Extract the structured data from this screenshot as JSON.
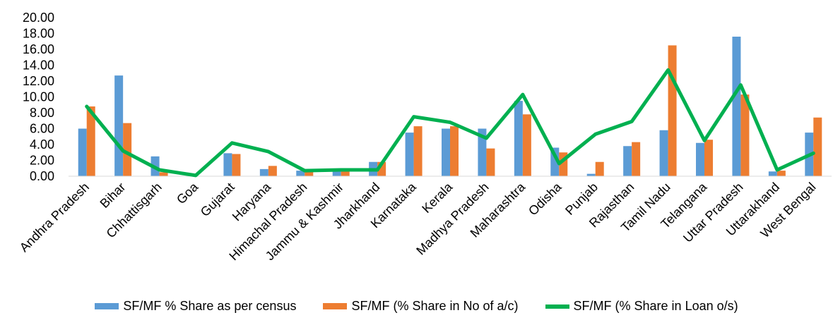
{
  "chart_data": {
    "type": "bar",
    "title": "",
    "xlabel": "",
    "ylabel": "",
    "ylim": [
      0,
      20
    ],
    "y_ticks": [
      "0.00",
      "2.00",
      "4.00",
      "6.00",
      "8.00",
      "10.00",
      "12.00",
      "14.00",
      "16.00",
      "18.00",
      "20.00"
    ],
    "grid": false,
    "legend_position": "bottom",
    "categories": [
      "Andhra Pradesh",
      "Bihar",
      "Chhattisgarh",
      "Goa",
      "Gujarat",
      "Haryana",
      "Himachal Pradesh",
      "Jammu & Kashmir",
      "Jharkhand",
      "Karnataka",
      "Kerala",
      "Madhya Pradesh",
      "Maharashtra",
      "Odisha",
      "Punjab",
      "Rajasthan",
      "Tamil Nadu",
      "Telangana",
      "Uttar Pradesh",
      "Uttarakhand",
      "West Bengal"
    ],
    "series": [
      {
        "name": "SF/MF % Share as per census",
        "kind": "bar",
        "color": "#5B9BD5",
        "values": [
          6.0,
          12.7,
          2.5,
          0.0,
          2.9,
          0.9,
          0.7,
          0.7,
          1.8,
          5.5,
          6.0,
          6.0,
          9.5,
          3.6,
          0.3,
          3.8,
          5.8,
          4.2,
          17.6,
          0.6,
          5.5
        ]
      },
      {
        "name": "SF/MF (% Share in No of a/c)",
        "kind": "bar",
        "color": "#ED7D31",
        "values": [
          8.8,
          6.7,
          0.5,
          0.0,
          2.8,
          1.3,
          0.6,
          0.7,
          1.8,
          6.3,
          6.3,
          3.5,
          7.8,
          3.0,
          1.8,
          4.3,
          16.5,
          4.6,
          10.3,
          0.7,
          7.4
        ]
      },
      {
        "name": "SF/MF (% Share in Loan o/s)",
        "kind": "line",
        "color": "#00B050",
        "values": [
          8.8,
          3.2,
          0.8,
          0.1,
          4.2,
          3.1,
          0.7,
          0.8,
          0.8,
          7.5,
          6.8,
          4.8,
          10.3,
          1.6,
          5.3,
          6.9,
          13.4,
          4.5,
          11.5,
          0.8,
          2.9
        ]
      }
    ]
  }
}
